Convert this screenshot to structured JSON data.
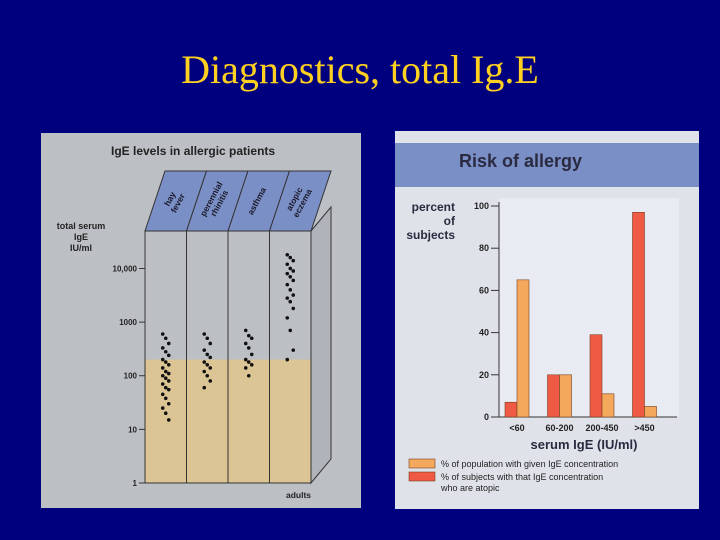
{
  "slide": {
    "title": "Diagnostics, total Ig.E"
  },
  "colors": {
    "background": "#00007f",
    "title": "#ffd020",
    "yellow_band": "#dcc594",
    "orange": "#f3a85c",
    "red": "#ee5a44",
    "blue_header": "#7b8fc7"
  },
  "chart_data": [
    {
      "type": "scatter",
      "title": "IgE levels in allergic patients",
      "ylabel": [
        "total serum",
        "IgE",
        "IU/ml"
      ],
      "y_scale": "log",
      "ylim": [
        1,
        50000
      ],
      "y_ticks": [
        1,
        10,
        100,
        1000,
        10000
      ],
      "y_tick_labels": [
        "1",
        "10",
        "100",
        "1000",
        "10,000"
      ],
      "xlabel": "adults",
      "categories": [
        "hay fever",
        "perennial rhinitis",
        "asthma",
        "atopic eczema"
      ],
      "series": [
        {
          "values": [
            600,
            500,
            400,
            330,
            280,
            240,
            200,
            180,
            160,
            140,
            120,
            110,
            100,
            90,
            80,
            70,
            60,
            55,
            45,
            38,
            30,
            25,
            20,
            15
          ]
        },
        {
          "values": [
            600,
            500,
            400,
            300,
            250,
            220,
            180,
            160,
            140,
            120,
            100,
            80,
            60
          ]
        },
        {
          "values": [
            700,
            560,
            500,
            400,
            330,
            250,
            200,
            180,
            160,
            140,
            100
          ]
        },
        {
          "values": [
            18000,
            16000,
            14000,
            12000,
            10000,
            9000,
            8000,
            7000,
            6000,
            5000,
            4000,
            3200,
            2800,
            2400,
            1800,
            1200,
            700,
            300,
            200
          ]
        }
      ],
      "axis_labels_shown": {
        "sm_tick": "1"
      }
    },
    {
      "type": "bar",
      "title": "Risk of allergy",
      "ylabel": [
        "percent",
        "of",
        "subjects"
      ],
      "ylim": [
        0,
        100
      ],
      "y_ticks": [
        0,
        20,
        40,
        60,
        80,
        100
      ],
      "categories": [
        "<60",
        "60-200",
        "200-450",
        ">450"
      ],
      "xlabel": "serum IgE (IU/ml)",
      "series": [
        {
          "name": "% of population with given IgE concentration",
          "values": [
            65,
            20,
            11,
            5
          ]
        },
        {
          "name": "% of subjects with that IgE concentration who are atopic",
          "values": [
            7,
            20,
            39,
            97
          ]
        }
      ]
    }
  ]
}
